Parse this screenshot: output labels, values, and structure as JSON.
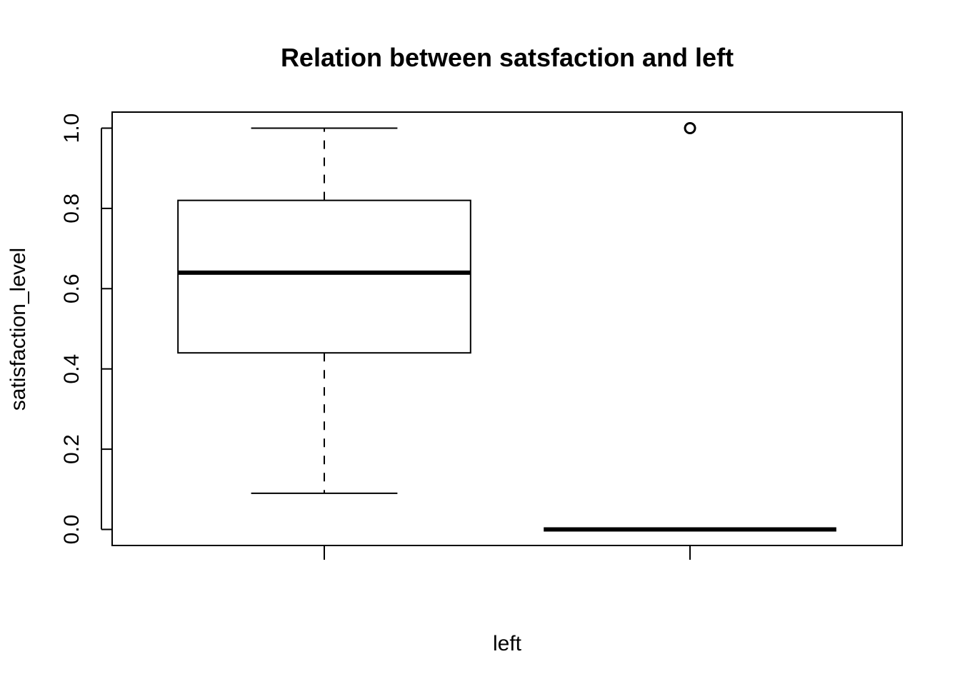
{
  "chart_data": {
    "type": "box",
    "title": "Relation between satsfaction and left",
    "xlabel": "left",
    "ylabel": "satisfaction_level",
    "ylim": [
      -0.04,
      1.04
    ],
    "yticks": [
      {
        "value": 0.0,
        "label": "0.0"
      },
      {
        "value": 0.2,
        "label": "0.2"
      },
      {
        "value": 0.4,
        "label": "0.4"
      },
      {
        "value": 0.6,
        "label": "0.6"
      },
      {
        "value": 0.8,
        "label": "0.8"
      },
      {
        "value": 1.0,
        "label": "1.0"
      }
    ],
    "boxes": [
      {
        "group": 1,
        "whisker_low": 0.09,
        "q1": 0.44,
        "median": 0.64,
        "q3": 0.82,
        "whisker_high": 1.0,
        "outliers": []
      },
      {
        "group": 2,
        "whisker_low": 0.0,
        "q1": 0.0,
        "median": 0.0,
        "q3": 0.0,
        "whisker_high": 0.0,
        "outliers": [
          1.0
        ]
      }
    ],
    "colors": {
      "stroke": "#000000",
      "background": "#ffffff",
      "box_fill": "#ffffff"
    }
  }
}
